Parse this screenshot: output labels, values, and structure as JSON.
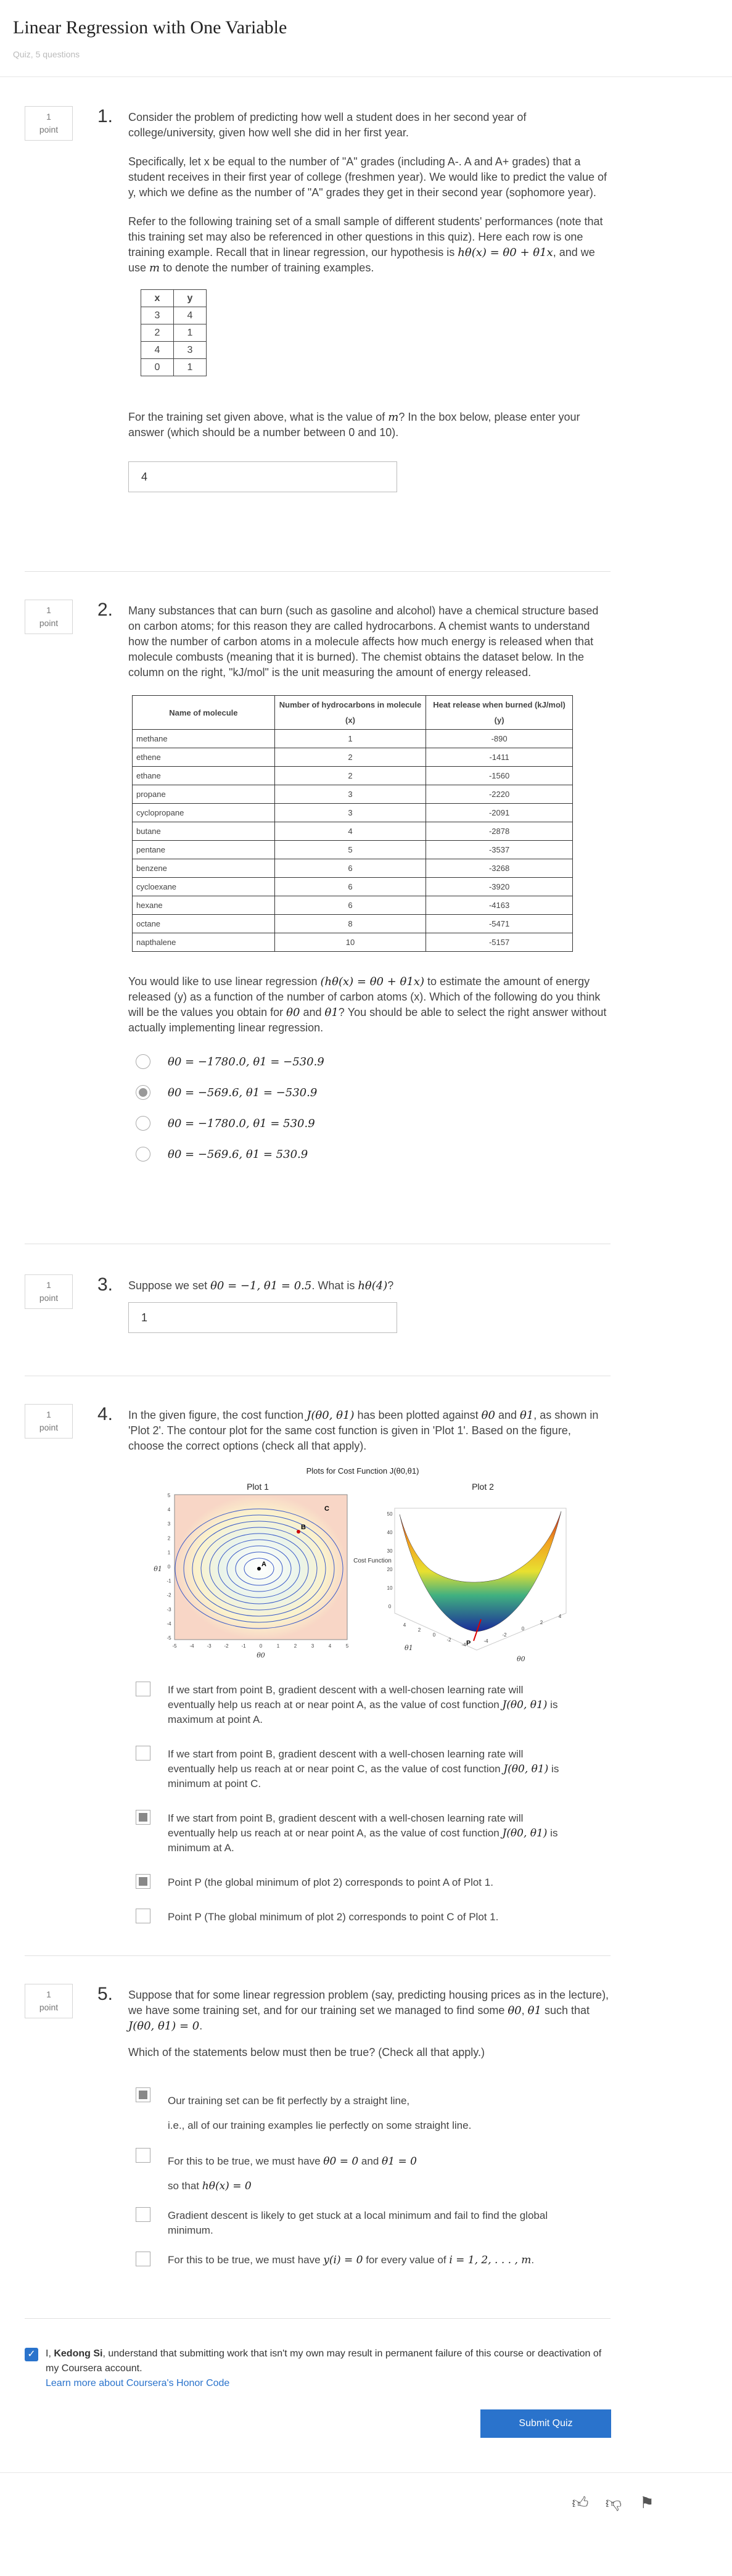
{
  "header": {
    "title": "Linear Regression with One Variable",
    "subtitle": "Quiz, 5 questions"
  },
  "points_label": [
    "1",
    "point"
  ],
  "q1": {
    "num": "1.",
    "p1": "Consider the problem of predicting how well a student does in her second year of college/university, given how well she did in her first year.",
    "p2": "Specifically, let x be equal to the number of \"A\" grades (including A-. A and A+ grades) that a student receives in their first year of college (freshmen year). We would like to predict the value of y, which we define as the number of \"A\" grades they get in their second year (sophomore year).",
    "p3a": "Refer to the following training set of a small sample of different students' performances (note that this training set may also be referenced in other questions in this quiz). Here each row is one training example. Recall that in linear regression, our hypothesis is ",
    "p3_math": "hθ(x) = θ0 + θ1x",
    "p3b": ", and we use ",
    "p3_m": "m",
    "p3c": " to denote the number of training examples.",
    "table_headers": [
      "x",
      "y"
    ],
    "table_rows": [
      [
        "3",
        "4"
      ],
      [
        "2",
        "1"
      ],
      [
        "4",
        "3"
      ],
      [
        "0",
        "1"
      ]
    ],
    "p4a": "For the training set given above, what is the value of ",
    "p4_m": "m",
    "p4b": "? In the box below, please enter your answer (which should be a number between 0 and 10).",
    "answer": "4"
  },
  "q2": {
    "num": "2.",
    "p1": "Many substances that can burn (such as gasoline and alcohol) have a chemical structure based on carbon atoms; for this reason they are called hydrocarbons. A chemist wants to understand how the number of carbon atoms in a molecule affects how much energy is released when that molecule combusts (meaning that it is burned). The chemist obtains the dataset below. In the column on the right, \"kJ/mol\" is the unit measuring the amount of energy released.",
    "headers": [
      "Name of molecule",
      "Number of hydrocarbons in molecule (x)",
      "Heat release when burned (kJ/mol) (y)"
    ],
    "rows": [
      [
        "methane",
        "1",
        "-890"
      ],
      [
        "ethene",
        "2",
        "-1411"
      ],
      [
        "ethane",
        "2",
        "-1560"
      ],
      [
        "propane",
        "3",
        "-2220"
      ],
      [
        "cyclopropane",
        "3",
        "-2091"
      ],
      [
        "butane",
        "4",
        "-2878"
      ],
      [
        "pentane",
        "5",
        "-3537"
      ],
      [
        "benzene",
        "6",
        "-3268"
      ],
      [
        "cycloexane",
        "6",
        "-3920"
      ],
      [
        "hexane",
        "6",
        "-4163"
      ],
      [
        "octane",
        "8",
        "-5471"
      ],
      [
        "napthalene",
        "10",
        "-5157"
      ]
    ],
    "p2a": "You would like to use linear regression ",
    "p2_math": "(hθ(x) = θ0 + θ1x)",
    "p2b": " to estimate the amount of energy released (y) as a function of the number of carbon atoms (x). Which of the following do you think will be the values you obtain for ",
    "p2_t0": "θ0",
    "p2c": " and ",
    "p2_t1": "θ1",
    "p2d": "? You should be able to select the right answer without actually implementing linear regression.",
    "options": [
      "θ0 = −1780.0, θ1 = −530.9",
      "θ0 = −569.6, θ1 = −530.9",
      "θ0 = −1780.0, θ1 = 530.9",
      "θ0 = −569.6, θ1 = 530.9"
    ],
    "selected": 1
  },
  "q3": {
    "num": "3.",
    "pa": "Suppose we set ",
    "p_math": "θ0 = −1, θ1 = 0.5",
    "pb": ". What is ",
    "p_h": "hθ(4)",
    "pc": "?",
    "answer": "1"
  },
  "q4": {
    "num": "4.",
    "pa": "In the given figure, the cost function ",
    "p_J": "J(θ0, θ1)",
    "pb": " has been plotted against ",
    "p_t0": "θ0",
    "pc": " and ",
    "p_t1": "θ1",
    "pd": ", as shown in 'Plot 2'. The contour plot for the same cost function is given in 'Plot 1'. Based on the figure, choose the correct options (check all that apply).",
    "figure": {
      "title": "Plots for Cost Function J(θ0,θ1)",
      "plot1_title": "Plot 1",
      "plot2_title": "Plot 2",
      "plot1_xlabel": "θ0",
      "plot1_ylabel": "θ1",
      "plot2_zlabel": "Cost Function",
      "plot2_xlabel": "θ0",
      "plot2_ylabel": "θ1",
      "point_a": "A",
      "point_b": "B",
      "point_c": "C",
      "point_p": "P",
      "plot1_xticks": [
        "-5",
        "-4",
        "-3",
        "-2",
        "-1",
        "0",
        "1",
        "2",
        "3",
        "4",
        "5"
      ],
      "plot1_yticks": [
        "5",
        "4",
        "3",
        "2",
        "1",
        "0",
        "-1",
        "-2",
        "-3",
        "-4",
        "-5"
      ],
      "plot2_zticks": [
        "50",
        "40",
        "30",
        "20",
        "10",
        "0"
      ],
      "plot2_xticks": [
        "-4",
        "-2",
        "0",
        "2",
        "4"
      ],
      "plot2_yticks": [
        "4",
        "2",
        "0",
        "-2",
        "-4"
      ]
    },
    "options": [
      {
        "text": "If we start from point B, gradient descent with a well-chosen learning rate will eventually help us reach at or near point A, as the value of cost function ",
        "math": "J(θ0, θ1)",
        "tail": " is maximum at point A.",
        "checked": false
      },
      {
        "text": "If we start from point B, gradient descent with a well-chosen learning rate will eventually help us reach at or near point C, as the value of cost function ",
        "math": "J(θ0, θ1)",
        "tail": " is minimum at point C.",
        "checked": false
      },
      {
        "text": "If we start from point B, gradient descent with a well-chosen learning rate will eventually help us reach at or near point A, as the value of cost function ",
        "math": "J(θ0, θ1)",
        "tail": " is minimum at A.",
        "checked": true
      },
      {
        "text": "Point P (the global minimum of plot 2) corresponds to point A of Plot 1.",
        "math": "",
        "tail": "",
        "checked": true
      },
      {
        "text": "Point P (The global minimum of plot 2) corresponds to point C of Plot 1.",
        "math": "",
        "tail": "",
        "checked": false
      }
    ]
  },
  "q5": {
    "num": "5.",
    "pa": "Suppose that for some linear regression problem (say, predicting housing prices as in the lecture), we have some training set, and for our training set we managed to find some ",
    "p_t0": "θ0",
    "pb": ", ",
    "p_t1": "θ1",
    "pc": " such that ",
    "p_J": "J(θ0, θ1) = 0",
    "pd": ".",
    "p2": "Which of the statements below must then be true? (Check all that apply.)",
    "opt1_l1": "Our training set can be fit perfectly by a straight line,",
    "opt1_l2": "i.e., all of our training examples lie perfectly on some straight line.",
    "opt2_a": "For this to be true, we must have ",
    "opt2_m1": "θ0 = 0",
    "opt2_b": " and ",
    "opt2_m2": "θ1 = 0",
    "opt2_c": "so that ",
    "opt2_m3": "hθ(x) = 0",
    "opt3": "Gradient descent is likely to get stuck at a local minimum and fail to find the global minimum.",
    "opt4_a": "For this to be true, we must have ",
    "opt4_m1": "y(i) = 0",
    "opt4_b": " for every value of ",
    "opt4_m2": "i = 1, 2, . . . , m",
    "opt4_c": ".",
    "checked": [
      true,
      false,
      false,
      false
    ]
  },
  "honor": {
    "pre": "I, ",
    "name": "Kedong Si",
    "post": ", understand that submitting work that isn't my own may result in permanent failure of this course or deactivation of my Coursera account.",
    "link": "Learn more about Coursera's Honor Code"
  },
  "submit_label": "Submit Quiz",
  "feedback_icons": [
    "thumbs-up-icon",
    "thumbs-down-icon",
    "flag-icon"
  ]
}
